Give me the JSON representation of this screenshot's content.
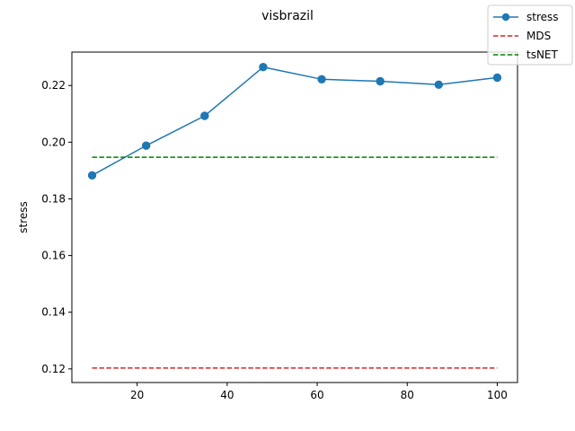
{
  "chart_data": {
    "type": "line",
    "title": "visbrazil",
    "xlabel": "",
    "ylabel": "stress",
    "xlim": [
      5.5,
      104.5
    ],
    "ylim": [
      0.1152,
      0.2318
    ],
    "xticks": [
      20,
      40,
      60,
      80,
      100
    ],
    "yticks": [
      0.12,
      0.14,
      0.16,
      0.18,
      0.2,
      0.22
    ],
    "xtick_labels": [
      "20",
      "40",
      "60",
      "80",
      "100"
    ],
    "ytick_labels": [
      "0.12",
      "0.14",
      "0.16",
      "0.18",
      "0.20",
      "0.22"
    ],
    "grid": false,
    "legend_position": "top-right",
    "series": [
      {
        "name": "stress",
        "style": "solid-marker",
        "color": "#1f77b4",
        "x": [
          10,
          22,
          35,
          48,
          61,
          74,
          87,
          100
        ],
        "y": [
          0.1883,
          0.1988,
          0.2093,
          0.2265,
          0.2222,
          0.2215,
          0.2203,
          0.2228
        ]
      },
      {
        "name": "MDS",
        "style": "dashed",
        "color": "#d62728",
        "x": [
          10,
          100
        ],
        "y": [
          0.1203,
          0.1203
        ]
      },
      {
        "name": "tsNET",
        "style": "dashed",
        "color": "#008000",
        "x": [
          10,
          100
        ],
        "y": [
          0.1947,
          0.1947
        ]
      }
    ]
  }
}
